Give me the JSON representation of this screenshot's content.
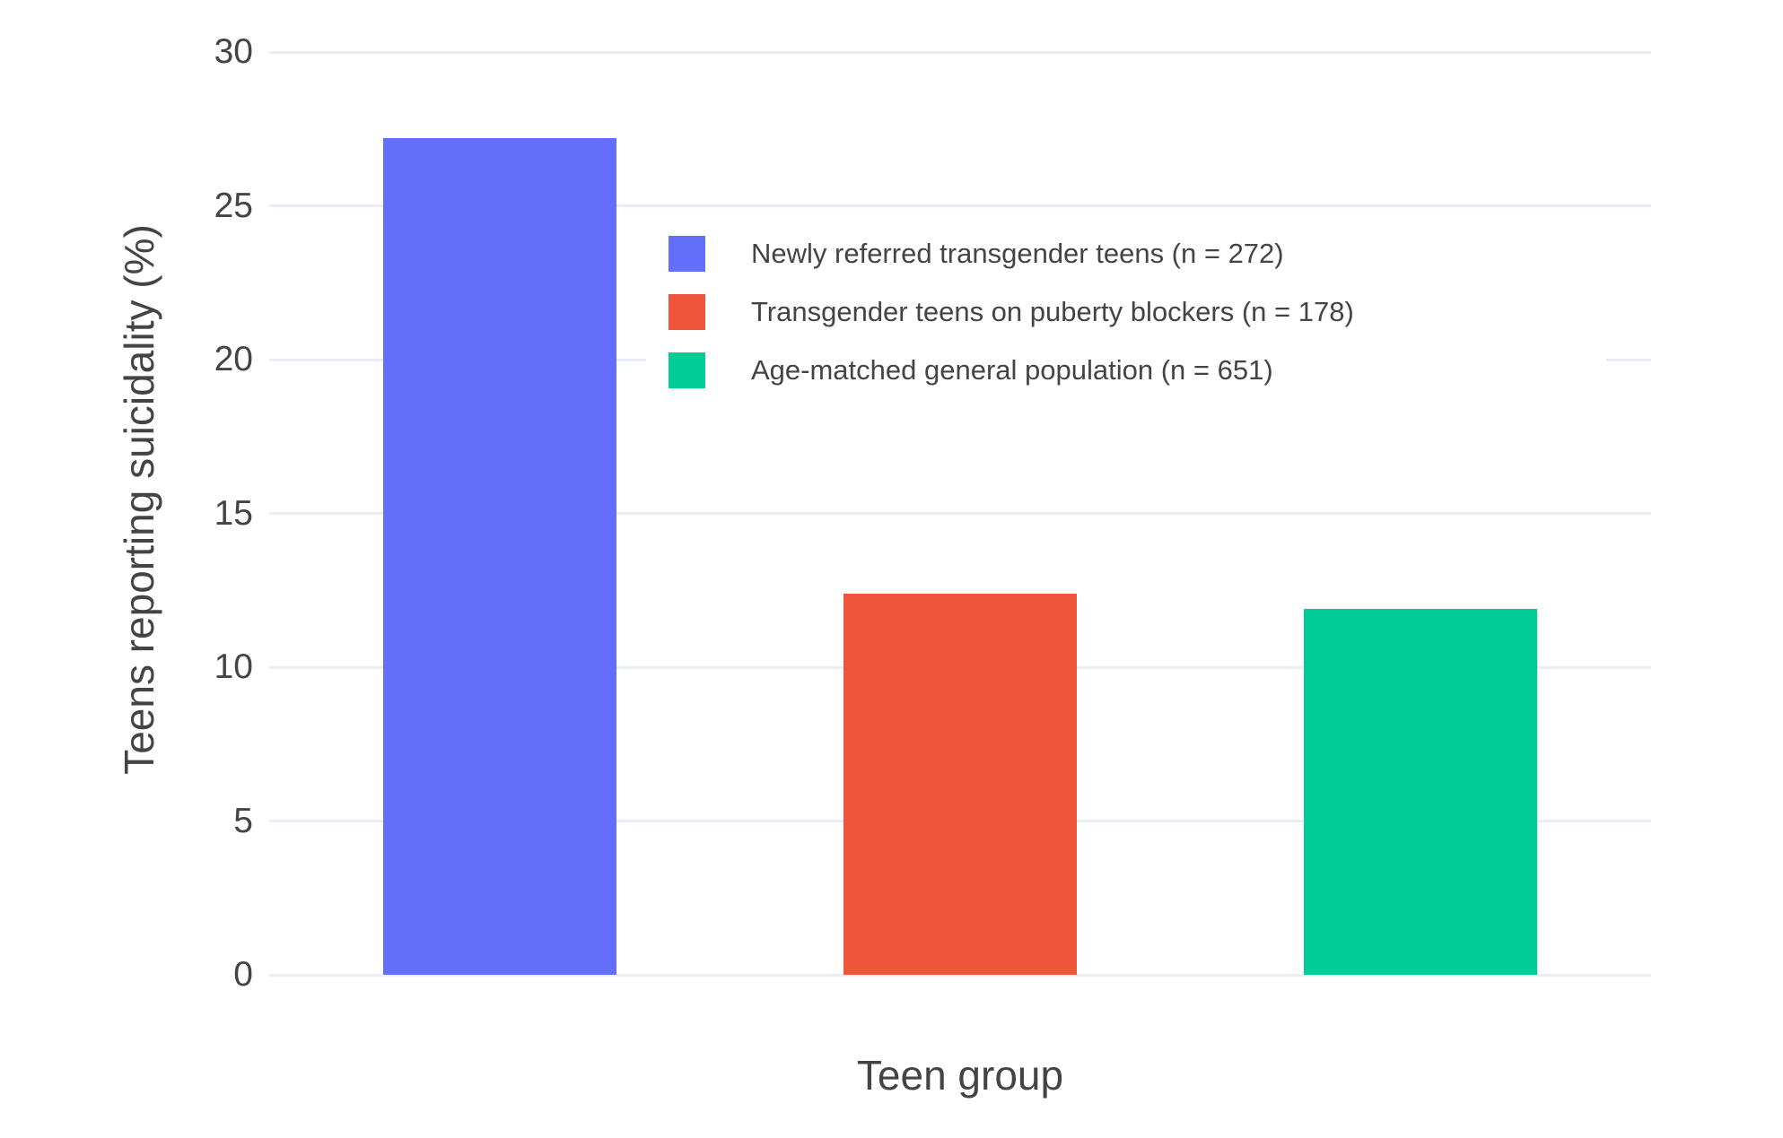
{
  "figure": {
    "background": "#ffffff",
    "text_color": "#444444",
    "grid_color": "#E9EEF6"
  },
  "chart_data": {
    "type": "bar",
    "title": "",
    "xlabel": "Teen group",
    "ylabel": "Teens reporting suicidality (%)",
    "ylim": [
      0,
      30.5
    ],
    "yticks": [
      0,
      5,
      10,
      15,
      20,
      25,
      30
    ],
    "grid": true,
    "x_tick_labels_shown": false,
    "legend_position": "inside top-center",
    "legend_background": "#ffffff",
    "series": [
      {
        "name": "Newly referred transgender teens (n = 272)",
        "value": 27.2,
        "color": "#636EFA"
      },
      {
        "name": "Transgender teens on puberty blockers (n = 178)",
        "value": 12.4,
        "color": "#EF553B"
      },
      {
        "name": "Age-matched general population (n = 651)",
        "value": 11.9,
        "color": "#00CC96"
      }
    ]
  }
}
